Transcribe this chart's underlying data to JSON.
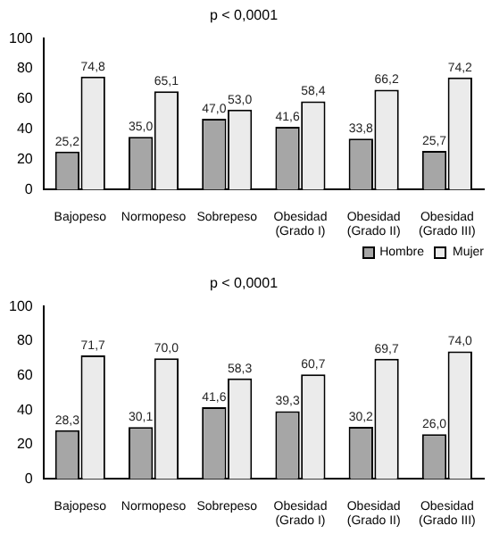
{
  "chart_data": [
    {
      "type": "bar",
      "title": "p < 0,0001",
      "categories": [
        "Bajopeso",
        "Normopeso",
        "Sobrepeso",
        "Obesidad (Grado I)",
        "Obesidad (Grado II)",
        "Obesidad (Grado III)"
      ],
      "series": [
        {
          "name": "Hombre",
          "color": "#a6a6a6",
          "values": [
            25.2,
            35.0,
            47.0,
            41.6,
            33.8,
            25.7
          ],
          "value_labels": [
            "25,2",
            "35,0",
            "47,0",
            "41,6",
            "33,8",
            "25,7"
          ]
        },
        {
          "name": "Mujer",
          "color": "#ebebeb",
          "values": [
            74.8,
            65.1,
            53.0,
            58.4,
            66.2,
            74.2
          ],
          "value_labels": [
            "74,8",
            "65,1",
            "53,0",
            "58,4",
            "66,2",
            "74,2"
          ]
        }
      ],
      "ylim": [
        0,
        100
      ],
      "yticks": [
        0,
        20,
        40,
        60,
        80,
        100
      ],
      "grid": false,
      "legend": "bottom right"
    },
    {
      "type": "bar",
      "title": "p < 0,0001",
      "categories": [
        "Bajopeso",
        "Normopeso",
        "Sobrepeso",
        "Obesidad (Grado I)",
        "Obesidad (Grado II)",
        "Obesidad (Grado III)"
      ],
      "series": [
        {
          "color": "#a6a6a6",
          "values": [
            28.3,
            30.1,
            41.6,
            39.3,
            30.2,
            26.0
          ],
          "value_labels": [
            "28,3",
            "30,1",
            "41,6",
            "39,3",
            "30,2",
            "26,0"
          ]
        },
        {
          "color": "#ebebeb",
          "values": [
            71.7,
            70.0,
            58.3,
            60.7,
            69.7,
            74.0
          ],
          "value_labels": [
            "71,7",
            "70,0",
            "58,3",
            "60,7",
            "69,7",
            "74,0"
          ]
        }
      ],
      "ylim": [
        0,
        100
      ],
      "yticks": [
        0,
        20,
        40,
        60,
        80,
        100
      ],
      "grid": false,
      "legend": false
    }
  ]
}
